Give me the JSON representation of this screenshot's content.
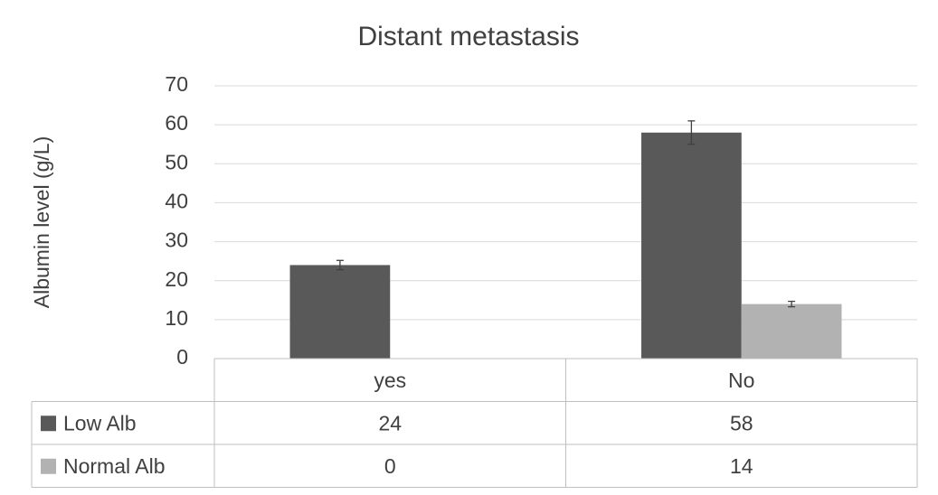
{
  "chart_data": {
    "type": "bar",
    "title": "Distant metastasis",
    "y_label": "Albumin level (g/L)",
    "categories": [
      "yes",
      "No"
    ],
    "series": [
      {
        "name": "Low Alb",
        "color": "#595959",
        "values": [
          24,
          58
        ],
        "errors": [
          1.2,
          3
        ]
      },
      {
        "name": "Normal Alb",
        "color": "#b2b2b2",
        "values": [
          0,
          14
        ],
        "errors": [
          null,
          0.7
        ]
      }
    ],
    "ylim": [
      0,
      70
    ],
    "yticks": [
      0,
      10,
      20,
      30,
      40,
      50,
      60,
      70
    ],
    "grid": true,
    "data_table": true
  }
}
